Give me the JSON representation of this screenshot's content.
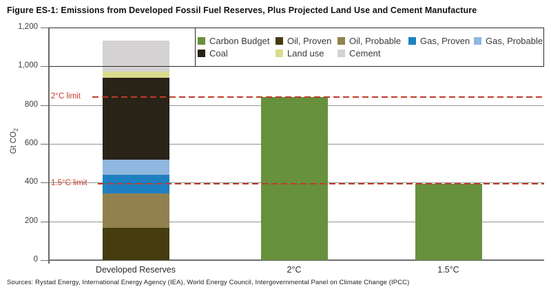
{
  "title": "Figure ES-1: Emissions from Developed Fossil Fuel Reserves, Plus Projected Land Use and Cement Manufacture",
  "source": "Sources: Rystad Energy, International Energy Agency (IEA), World Energy Council, Intergovernmental Panel on Climate Change (IPCC)",
  "y_axis": {
    "label": "Gt CO",
    "label_sub": "2",
    "ticks": [
      "1,200",
      "1,000",
      "800",
      "600",
      "400",
      "200",
      "0"
    ]
  },
  "chart_data": {
    "type": "bar",
    "title": "Figure ES-1: Emissions from Developed Fossil Fuel Reserves, Plus Projected Land Use and Cement Manufacture",
    "ylabel": "Gt CO2",
    "ylim": [
      0,
      1200
    ],
    "grid": true,
    "legend_position": "top",
    "categories": [
      "Developed Reserves",
      "2°C",
      "1.5°C"
    ],
    "bars": [
      {
        "category": "Developed Reserves",
        "total": 1132,
        "segments": [
          {
            "name": "Oil, Proven",
            "value": 166,
            "color": "#453C10"
          },
          {
            "name": "Oil, Probable",
            "value": 178,
            "color": "#92814F"
          },
          {
            "name": "Gas, Proven",
            "value": 96,
            "color": "#1E80C1"
          },
          {
            "name": "Gas, Probable",
            "value": 77,
            "color": "#8FB7E0"
          },
          {
            "name": "Coal",
            "value": 425,
            "color": "#2A2317"
          },
          {
            "name": "Land use",
            "value": 30,
            "color": "#D9DB8E"
          },
          {
            "name": "Cement",
            "value": 160,
            "color": "#D4D2D3"
          }
        ]
      },
      {
        "category": "2°C",
        "total": 843,
        "segments": [
          {
            "name": "Carbon Budget",
            "value": 843,
            "color": "#67913C"
          }
        ]
      },
      {
        "category": "1.5°C",
        "total": 393,
        "segments": [
          {
            "name": "Carbon Budget",
            "value": 393,
            "color": "#67913C"
          }
        ]
      }
    ],
    "reference_lines": [
      {
        "label": "2°C limit",
        "value": 843,
        "color": "#BF3C2B"
      },
      {
        "label": "1.5°C limit",
        "value": 393,
        "color": "#BF3C2B"
      }
    ],
    "legend": [
      {
        "name": "Carbon Budget",
        "color": "#67913C"
      },
      {
        "name": "Oil, Proven",
        "color": "#453C10"
      },
      {
        "name": "Oil, Probable",
        "color": "#92814F"
      },
      {
        "name": "Gas, Proven",
        "color": "#1E80C1"
      },
      {
        "name": "Gas, Probable",
        "color": "#8FB7E0"
      },
      {
        "name": "Coal",
        "color": "#2A2317"
      },
      {
        "name": "Land use",
        "color": "#D9DB8E"
      },
      {
        "name": "Cement",
        "color": "#D4D2D3"
      }
    ]
  }
}
